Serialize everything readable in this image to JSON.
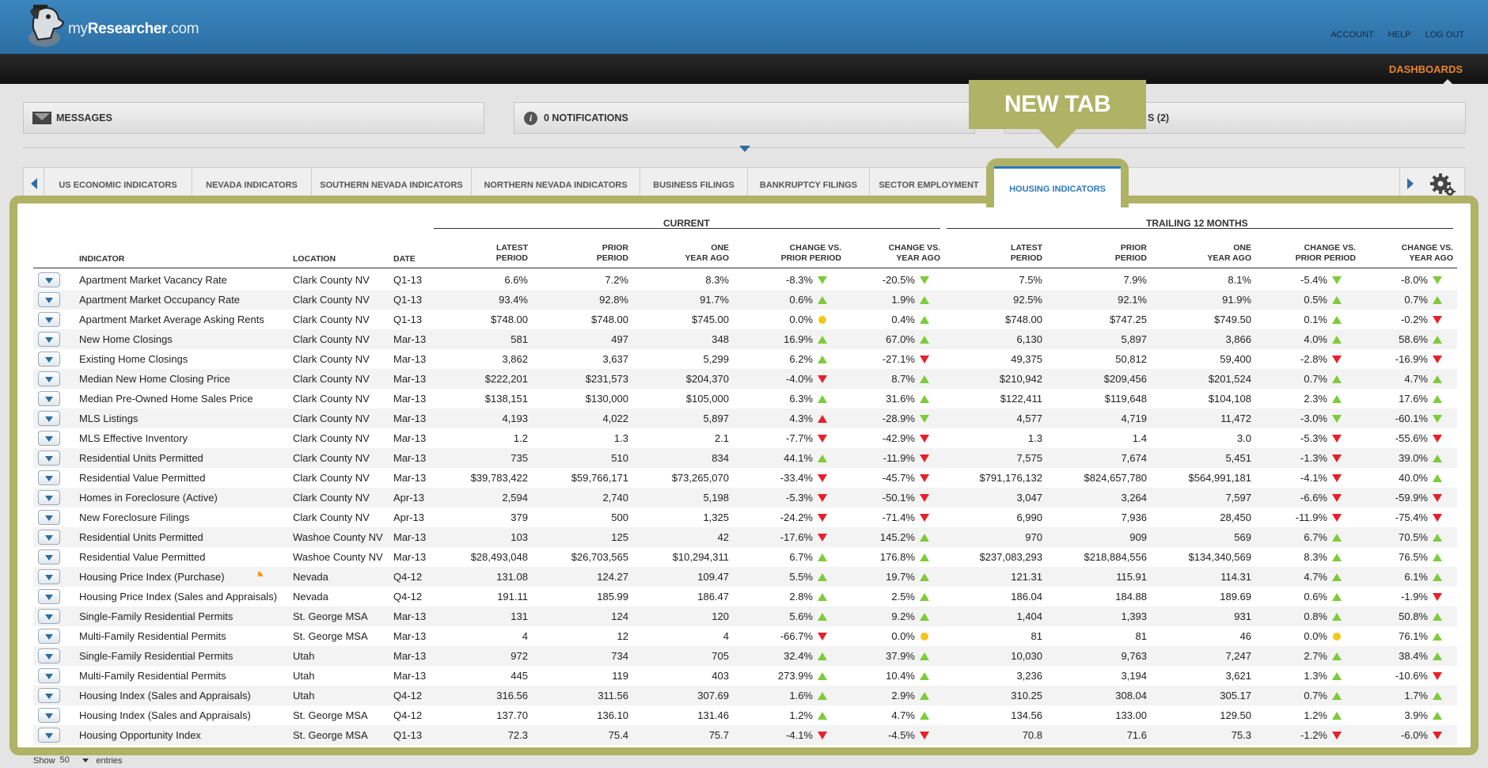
{
  "app": {
    "logo_prefix": "my",
    "logo_main": "Researcher",
    "logo_suffix": ".com"
  },
  "toplinks": [
    "ACCOUNT",
    "HELP",
    "LOG OUT"
  ],
  "nav": {
    "active": "DASHBOARDS"
  },
  "panels": {
    "messages": "MESSAGES",
    "notifications": "0 NOTIFICATIONS",
    "updates": "S (2)"
  },
  "callout": "NEW TAB",
  "tabs": [
    "US ECONOMIC INDICATORS",
    "NEVADA INDICATORS",
    "SOUTHERN NEVADA INDICATORS",
    "NORTHERN NEVADA INDICATORS",
    "BUSINESS FILINGS",
    "BANKRUPTCY FILINGS",
    "SECTOR EMPLOYMENT"
  ],
  "active_tab": "HOUSING INDICATORS",
  "table": {
    "group_current": "CURRENT",
    "group_trailing": "TRAILING 12 MONTHS",
    "headers": {
      "indicator": "INDICATOR",
      "location": "LOCATION",
      "date": "DATE",
      "latest_1": "LATEST",
      "latest_2": "PERIOD",
      "prior_1": "PRIOR",
      "prior_2": "PERIOD",
      "year_1": "ONE",
      "year_2": "YEAR AGO",
      "chg_prior_1": "CHANGE VS.",
      "chg_prior_2": "PRIOR PERIOD",
      "chg_year_1": "CHANGE VS.",
      "chg_year_2": "YEAR AGO"
    },
    "rows": [
      [
        "Apartment Market Vacancy Rate",
        "Clark County NV",
        "Q1-13",
        "6.6%",
        "7.2%",
        "8.3%",
        "-8.3%",
        "downg",
        "-20.5%",
        "downg",
        "7.5%",
        "7.9%",
        "8.1%",
        "-5.4%",
        "downg",
        "-8.0%",
        "downg"
      ],
      [
        "Apartment Market Occupancy Rate",
        "Clark County NV",
        "Q1-13",
        "93.4%",
        "92.8%",
        "91.7%",
        "0.6%",
        "up",
        "1.9%",
        "up",
        "92.5%",
        "92.1%",
        "91.9%",
        "0.5%",
        "up",
        "0.7%",
        "up"
      ],
      [
        "Apartment Market Average Asking Rents",
        "Clark County NV",
        "Q1-13",
        "$748.00",
        "$748.00",
        "$745.00",
        "0.0%",
        "flat",
        "0.4%",
        "up",
        "$748.00",
        "$747.25",
        "$749.50",
        "0.1%",
        "up",
        "-0.2%",
        "down"
      ],
      [
        "New Home Closings",
        "Clark County NV",
        "Mar-13",
        "581",
        "497",
        "348",
        "16.9%",
        "up",
        "67.0%",
        "up",
        "6,130",
        "5,897",
        "3,866",
        "4.0%",
        "up",
        "58.6%",
        "up"
      ],
      [
        "Existing Home Closings",
        "Clark County NV",
        "Mar-13",
        "3,862",
        "3,637",
        "5,299",
        "6.2%",
        "up",
        "-27.1%",
        "down",
        "49,375",
        "50,812",
        "59,400",
        "-2.8%",
        "down",
        "-16.9%",
        "down"
      ],
      [
        "Median New Home Closing Price",
        "Clark County NV",
        "Mar-13",
        "$222,201",
        "$231,573",
        "$204,370",
        "-4.0%",
        "down",
        "8.7%",
        "up",
        "$210,942",
        "$209,456",
        "$201,524",
        "0.7%",
        "up",
        "4.7%",
        "up"
      ],
      [
        "Median Pre-Owned Home Sales Price",
        "Clark County NV",
        "Mar-13",
        "$138,151",
        "$130,000",
        "$105,000",
        "6.3%",
        "up",
        "31.6%",
        "up",
        "$122,411",
        "$119,648",
        "$104,108",
        "2.3%",
        "up",
        "17.6%",
        "up"
      ],
      [
        "MLS Listings",
        "Clark County NV",
        "Mar-13",
        "4,193",
        "4,022",
        "5,897",
        "4.3%",
        "upr",
        "-28.9%",
        "downg",
        "4,577",
        "4,719",
        "11,472",
        "-3.0%",
        "downg",
        "-60.1%",
        "downg"
      ],
      [
        "MLS Effective Inventory",
        "Clark County NV",
        "Mar-13",
        "1.2",
        "1.3",
        "2.1",
        "-7.7%",
        "down",
        "-42.9%",
        "down",
        "1.3",
        "1.4",
        "3.0",
        "-5.3%",
        "down",
        "-55.6%",
        "down"
      ],
      [
        "Residential Units Permitted",
        "Clark County NV",
        "Mar-13",
        "735",
        "510",
        "834",
        "44.1%",
        "up",
        "-11.9%",
        "down",
        "7,575",
        "7,674",
        "5,451",
        "-1.3%",
        "down",
        "39.0%",
        "up"
      ],
      [
        "Residential Value Permitted",
        "Clark County NV",
        "Mar-13",
        "$39,783,422",
        "$59,766,171",
        "$73,265,070",
        "-33.4%",
        "down",
        "-45.7%",
        "down",
        "$791,176,132",
        "$824,657,780",
        "$564,991,181",
        "-4.1%",
        "down",
        "40.0%",
        "up"
      ],
      [
        "Homes in Foreclosure (Active)",
        "Clark County NV",
        "Apr-13",
        "2,594",
        "2,740",
        "5,198",
        "-5.3%",
        "down",
        "-50.1%",
        "down",
        "3,047",
        "3,264",
        "7,597",
        "-6.6%",
        "down",
        "-59.9%",
        "down"
      ],
      [
        "New Foreclosure Filings",
        "Clark County NV",
        "Apr-13",
        "379",
        "500",
        "1,325",
        "-24.2%",
        "down",
        "-71.4%",
        "down",
        "6,990",
        "7,936",
        "28,450",
        "-11.9%",
        "down",
        "-75.4%",
        "down"
      ],
      [
        "Residential Units Permitted",
        "Washoe County NV",
        "Mar-13",
        "103",
        "125",
        "42",
        "-17.6%",
        "down",
        "145.2%",
        "up",
        "970",
        "909",
        "569",
        "6.7%",
        "up",
        "70.5%",
        "up"
      ],
      [
        "Residential Value Permitted",
        "Washoe County NV",
        "Mar-13",
        "$28,493,048",
        "$26,703,565",
        "$10,294,311",
        "6.7%",
        "up",
        "176.8%",
        "up",
        "$237,083,293",
        "$218,884,556",
        "$134,340,569",
        "8.3%",
        "up",
        "76.5%",
        "up"
      ],
      [
        "Housing Price Index (Purchase)",
        "Nevada",
        "Q4-12",
        "131.08",
        "124.27",
        "109.47",
        "5.5%",
        "up",
        "19.7%",
        "up",
        "121.31",
        "115.91",
        "114.31",
        "4.7%",
        "up",
        "6.1%",
        "up"
      ],
      [
        "Housing Price Index (Sales and Appraisals)",
        "Nevada",
        "Q4-12",
        "191.11",
        "185.99",
        "186.47",
        "2.8%",
        "up",
        "2.5%",
        "up",
        "186.04",
        "184.88",
        "189.69",
        "0.6%",
        "up",
        "-1.9%",
        "down"
      ],
      [
        "Single-Family Residential Permits",
        "St. George MSA",
        "Mar-13",
        "131",
        "124",
        "120",
        "5.6%",
        "up",
        "9.2%",
        "up",
        "1,404",
        "1,393",
        "931",
        "0.8%",
        "up",
        "50.8%",
        "up"
      ],
      [
        "Multi-Family Residential Permits",
        "St. George MSA",
        "Mar-13",
        "4",
        "12",
        "4",
        "-66.7%",
        "down",
        "0.0%",
        "flat",
        "81",
        "81",
        "46",
        "0.0%",
        "flat",
        "76.1%",
        "up"
      ],
      [
        "Single-Family Residential Permits",
        "Utah",
        "Mar-13",
        "972",
        "734",
        "705",
        "32.4%",
        "up",
        "37.9%",
        "up",
        "10,030",
        "9,763",
        "7,247",
        "2.7%",
        "up",
        "38.4%",
        "up"
      ],
      [
        "Multi-Family Residential Permits",
        "Utah",
        "Mar-13",
        "445",
        "119",
        "403",
        "273.9%",
        "up",
        "10.4%",
        "up",
        "3,236",
        "3,194",
        "3,621",
        "1.3%",
        "up",
        "-10.6%",
        "down"
      ],
      [
        "Housing Index (Sales and Appraisals)",
        "Utah",
        "Q4-12",
        "316.56",
        "311.56",
        "307.69",
        "1.6%",
        "up",
        "2.9%",
        "up",
        "310.25",
        "308.04",
        "305.17",
        "0.7%",
        "up",
        "1.7%",
        "up"
      ],
      [
        "Housing Index (Sales and Appraisals)",
        "St. George MSA",
        "Q4-12",
        "137.70",
        "136.10",
        "131.46",
        "1.2%",
        "up",
        "4.7%",
        "up",
        "134.56",
        "133.00",
        "129.50",
        "1.2%",
        "up",
        "3.9%",
        "up"
      ],
      [
        "Housing Opportunity Index",
        "St. George MSA",
        "Q1-13",
        "72.3",
        "75.4",
        "75.7",
        "-4.1%",
        "down",
        "-4.5%",
        "down",
        "70.8",
        "71.6",
        "75.3",
        "-1.2%",
        "down",
        "-6.0%",
        "down"
      ]
    ]
  },
  "footer": {
    "show": "Show",
    "count": "50",
    "entries": "entries"
  },
  "colors": {
    "header_blue": "#2b6ea3",
    "accent_orange": "#e8842a",
    "callout_olive": "#b0b266",
    "up_green": "#7dcb3a",
    "down_red": "#e8202a",
    "flat_yellow": "#f0c81c"
  }
}
